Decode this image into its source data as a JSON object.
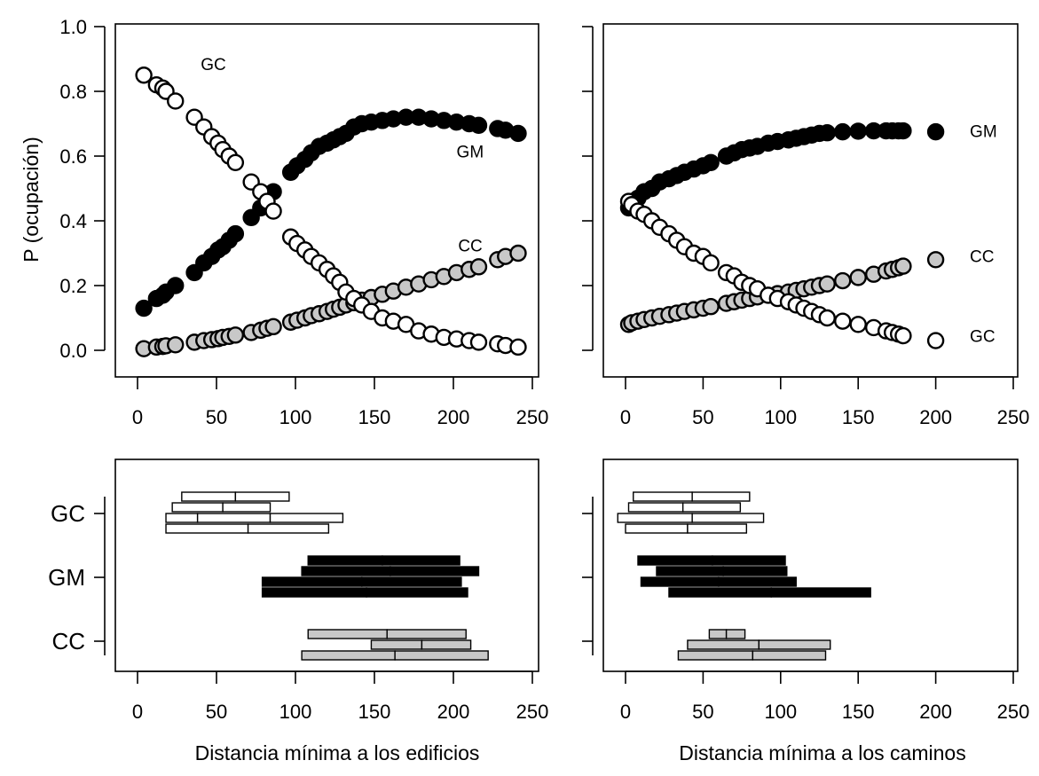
{
  "figure": {
    "ylabel": "P (ocupación)",
    "xlabel_left": "Distancia mínima a los edificios",
    "xlabel_right": "Distancia mínima a los caminos"
  },
  "colors": {
    "GM": "#000000",
    "GC": "#ffffff",
    "CC": "#c8c8c8",
    "stroke": "#000000"
  },
  "chart_data": [
    {
      "id": "top-left",
      "type": "scatter",
      "xlim": [
        -10,
        250
      ],
      "ylim": [
        -0.05,
        1.0
      ],
      "xticks": [
        0,
        50,
        100,
        150,
        200,
        250
      ],
      "yticks": [
        "0.0",
        "0.2",
        "0.4",
        "0.6",
        "0.8",
        "1.0"
      ],
      "grid": false,
      "series": [
        {
          "name": "GC",
          "x": [
            4,
            12,
            16,
            18,
            24,
            36,
            42,
            47,
            51,
            54,
            58,
            62,
            72,
            78,
            82,
            86,
            97,
            101,
            106,
            110,
            115,
            120,
            124,
            128,
            132,
            137,
            142,
            148,
            155,
            162,
            170,
            178,
            186,
            194,
            202,
            210,
            216,
            228,
            233,
            241
          ],
          "y": [
            0.85,
            0.82,
            0.81,
            0.8,
            0.77,
            0.72,
            0.69,
            0.66,
            0.64,
            0.62,
            0.6,
            0.58,
            0.52,
            0.49,
            0.46,
            0.43,
            0.35,
            0.33,
            0.31,
            0.29,
            0.27,
            0.25,
            0.23,
            0.21,
            0.18,
            0.16,
            0.14,
            0.12,
            0.1,
            0.09,
            0.08,
            0.06,
            0.05,
            0.04,
            0.035,
            0.03,
            0.025,
            0.02,
            0.015,
            0.01
          ]
        },
        {
          "name": "GM",
          "x": [
            4,
            12,
            16,
            18,
            24,
            36,
            42,
            47,
            51,
            54,
            58,
            62,
            72,
            78,
            82,
            86,
            97,
            101,
            106,
            110,
            115,
            120,
            124,
            128,
            132,
            137,
            142,
            148,
            155,
            162,
            170,
            178,
            186,
            194,
            202,
            210,
            216,
            228,
            233,
            241
          ],
          "y": [
            0.13,
            0.16,
            0.17,
            0.18,
            0.2,
            0.24,
            0.27,
            0.29,
            0.31,
            0.32,
            0.34,
            0.36,
            0.41,
            0.44,
            0.46,
            0.49,
            0.55,
            0.57,
            0.59,
            0.61,
            0.63,
            0.64,
            0.65,
            0.66,
            0.67,
            0.69,
            0.7,
            0.705,
            0.71,
            0.715,
            0.72,
            0.72,
            0.715,
            0.71,
            0.705,
            0.7,
            0.695,
            0.685,
            0.68,
            0.67
          ]
        },
        {
          "name": "CC",
          "x": [
            4,
            12,
            16,
            18,
            24,
            36,
            42,
            47,
            51,
            54,
            58,
            62,
            72,
            78,
            82,
            86,
            97,
            101,
            106,
            110,
            115,
            120,
            124,
            128,
            132,
            137,
            142,
            148,
            155,
            162,
            170,
            178,
            186,
            194,
            202,
            210,
            216,
            228,
            233,
            241
          ],
          "y": [
            0.005,
            0.01,
            0.012,
            0.014,
            0.017,
            0.025,
            0.03,
            0.033,
            0.036,
            0.04,
            0.043,
            0.047,
            0.055,
            0.062,
            0.068,
            0.073,
            0.087,
            0.093,
            0.1,
            0.107,
            0.113,
            0.12,
            0.127,
            0.133,
            0.14,
            0.147,
            0.155,
            0.163,
            0.173,
            0.183,
            0.195,
            0.205,
            0.218,
            0.228,
            0.24,
            0.25,
            0.258,
            0.28,
            0.29,
            0.3
          ]
        }
      ],
      "annotations": [
        {
          "text": "GC",
          "x": 40,
          "y": 0.885
        },
        {
          "text": "GM",
          "x": 202,
          "y": 0.615
        },
        {
          "text": "CC",
          "x": 203,
          "y": 0.325
        }
      ]
    },
    {
      "id": "top-right",
      "type": "scatter",
      "xlim": [
        -10,
        250
      ],
      "ylim": [
        -0.05,
        1.0
      ],
      "xticks": [
        0,
        50,
        100,
        150,
        200,
        250
      ],
      "grid": false,
      "series": [
        {
          "name": "GM",
          "x": [
            2,
            4,
            8,
            12,
            17,
            22,
            28,
            33,
            38,
            44,
            50,
            55,
            65,
            70,
            75,
            80,
            85,
            92,
            98,
            105,
            110,
            115,
            120,
            125,
            130,
            140,
            150,
            160,
            168,
            172,
            176,
            179,
            200
          ],
          "y": [
            0.44,
            0.46,
            0.47,
            0.49,
            0.5,
            0.52,
            0.53,
            0.54,
            0.55,
            0.56,
            0.57,
            0.58,
            0.6,
            0.61,
            0.62,
            0.625,
            0.63,
            0.64,
            0.645,
            0.65,
            0.655,
            0.66,
            0.665,
            0.67,
            0.672,
            0.675,
            0.677,
            0.678,
            0.678,
            0.678,
            0.678,
            0.678,
            0.675
          ]
        },
        {
          "name": "GC",
          "x": [
            2,
            4,
            8,
            12,
            17,
            22,
            28,
            33,
            38,
            44,
            50,
            55,
            65,
            70,
            75,
            80,
            85,
            92,
            98,
            105,
            110,
            115,
            120,
            125,
            130,
            140,
            150,
            160,
            168,
            172,
            176,
            179,
            200
          ],
          "y": [
            0.46,
            0.45,
            0.43,
            0.42,
            0.4,
            0.38,
            0.36,
            0.34,
            0.32,
            0.3,
            0.29,
            0.27,
            0.24,
            0.23,
            0.21,
            0.2,
            0.19,
            0.17,
            0.16,
            0.15,
            0.14,
            0.13,
            0.12,
            0.11,
            0.1,
            0.09,
            0.08,
            0.07,
            0.06,
            0.055,
            0.05,
            0.045,
            0.03
          ]
        },
        {
          "name": "CC",
          "x": [
            2,
            4,
            8,
            12,
            17,
            22,
            28,
            33,
            38,
            44,
            50,
            55,
            65,
            70,
            75,
            80,
            85,
            92,
            98,
            105,
            110,
            115,
            120,
            125,
            130,
            140,
            150,
            160,
            168,
            172,
            176,
            179,
            200
          ],
          "y": [
            0.08,
            0.085,
            0.09,
            0.095,
            0.1,
            0.105,
            0.11,
            0.115,
            0.12,
            0.125,
            0.13,
            0.135,
            0.145,
            0.15,
            0.155,
            0.16,
            0.165,
            0.17,
            0.175,
            0.18,
            0.185,
            0.19,
            0.195,
            0.2,
            0.205,
            0.215,
            0.225,
            0.235,
            0.245,
            0.25,
            0.255,
            0.26,
            0.28
          ]
        }
      ],
      "annotations": [
        {
          "text": "GM",
          "x": 222,
          "y": 0.678
        },
        {
          "text": "CC",
          "x": 222,
          "y": 0.292
        },
        {
          "text": "GC",
          "x": 222,
          "y": 0.045
        }
      ]
    },
    {
      "id": "bottom-left",
      "type": "bar",
      "orientation": "horizontal-intervals",
      "xlim": [
        -10,
        250
      ],
      "xticks": [
        0,
        50,
        100,
        150,
        200,
        250
      ],
      "categories": [
        "GC",
        "GM",
        "CC"
      ],
      "series": [
        {
          "name": "GC",
          "intervals": [
            [
              28,
              62
            ],
            [
              62,
              96
            ],
            [
              22,
              54
            ],
            [
              54,
              84
            ],
            [
              18,
              38
            ],
            [
              38,
              84
            ],
            [
              84,
              130
            ],
            [
              18,
              70
            ],
            [
              70,
              121
            ]
          ],
          "rows": [
            0,
            0,
            1,
            1,
            2,
            2,
            2,
            3,
            3
          ]
        },
        {
          "name": "GM",
          "intervals": [
            [
              108,
              155
            ],
            [
              155,
              204
            ],
            [
              104,
              160
            ],
            [
              160,
              216
            ],
            [
              79,
              142
            ],
            [
              142,
              205
            ],
            [
              79,
              145
            ],
            [
              145,
              209
            ]
          ],
          "rows": [
            0,
            0,
            1,
            1,
            2,
            2,
            3,
            3
          ]
        },
        {
          "name": "CC",
          "intervals": [
            [
              108,
              158
            ],
            [
              158,
              208
            ],
            [
              148,
              180
            ],
            [
              180,
              211
            ],
            [
              104,
              163
            ],
            [
              163,
              222
            ]
          ],
          "rows": [
            0,
            0,
            1,
            1,
            2,
            2
          ]
        }
      ]
    },
    {
      "id": "bottom-right",
      "type": "bar",
      "orientation": "horizontal-intervals",
      "xlim": [
        -10,
        250
      ],
      "xticks": [
        0,
        50,
        100,
        150,
        200,
        250
      ],
      "categories": [
        "GC",
        "GM",
        "CC"
      ],
      "series": [
        {
          "name": "GC",
          "intervals": [
            [
              5,
              43
            ],
            [
              43,
              80
            ],
            [
              2,
              37
            ],
            [
              37,
              74
            ],
            [
              -5,
              43
            ],
            [
              43,
              89
            ],
            [
              0,
              40
            ],
            [
              40,
              78
            ]
          ],
          "rows": [
            0,
            0,
            1,
            1,
            2,
            2,
            3,
            3
          ]
        },
        {
          "name": "GM",
          "intervals": [
            [
              8,
              56
            ],
            [
              56,
              103
            ],
            [
              20,
              63
            ],
            [
              63,
              104
            ],
            [
              10,
              60
            ],
            [
              60,
              110
            ],
            [
              28,
              94
            ],
            [
              94,
              158
            ]
          ],
          "rows": [
            0,
            0,
            1,
            1,
            2,
            2,
            3,
            3
          ]
        },
        {
          "name": "CC",
          "intervals": [
            [
              54,
              65
            ],
            [
              65,
              77
            ],
            [
              40,
              86
            ],
            [
              86,
              132
            ],
            [
              34,
              82
            ],
            [
              82,
              129
            ]
          ],
          "rows": [
            0,
            0,
            1,
            1,
            2,
            2
          ]
        }
      ]
    }
  ]
}
